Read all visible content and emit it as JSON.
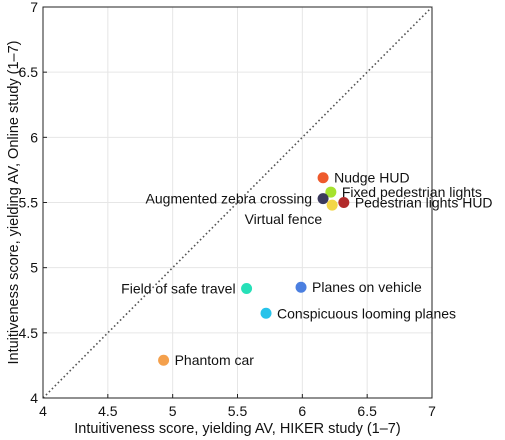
{
  "chart_data": {
    "type": "scatter",
    "xlabel": "Intuitiveness score, yielding AV, HIKER study (1–7)",
    "ylabel": "Intuitiveness score, yielding AV, Online study (1–7)",
    "xlim": [
      4,
      7
    ],
    "ylim": [
      4,
      7
    ],
    "x_ticks": [
      "4",
      "4.5",
      "5",
      "5.5",
      "6",
      "6.5",
      "7"
    ],
    "y_ticks": [
      "4",
      "4.5",
      "5",
      "5.5",
      "6",
      "6.5",
      "7"
    ],
    "grid": true,
    "reference_line": "diagonal y = x, dotted",
    "points": [
      {
        "label": "Nudge HUD",
        "x": 6.16,
        "y": 5.69,
        "color": "#ee5a2c",
        "label_side": "right"
      },
      {
        "label": "Fixed pedestrian lights",
        "x": 6.22,
        "y": 5.58,
        "color": "#a6e22e",
        "label_side": "right"
      },
      {
        "label": "Augmented zebra crossing",
        "x": 6.16,
        "y": 5.53,
        "color": "#3b3a5c",
        "label_side": "left"
      },
      {
        "label": "Pedestrian lights HUD",
        "x": 6.32,
        "y": 5.5,
        "color": "#b22b2b",
        "label_side": "right"
      },
      {
        "label": "Virtual fence",
        "x": 6.23,
        "y": 5.48,
        "color": "#f3d646",
        "label_side": "left-below"
      },
      {
        "label": "Planes on vehicle",
        "x": 5.99,
        "y": 4.85,
        "color": "#4b7fe0",
        "label_side": "right"
      },
      {
        "label": "Field of safe travel",
        "x": 5.57,
        "y": 4.84,
        "color": "#26e0b8",
        "label_side": "left"
      },
      {
        "label": "Conspicuous looming planes",
        "x": 5.72,
        "y": 4.65,
        "color": "#27c3ea",
        "label_side": "right"
      },
      {
        "label": "Phantom car",
        "x": 4.93,
        "y": 4.29,
        "color": "#f4a04c",
        "label_side": "right"
      }
    ]
  }
}
